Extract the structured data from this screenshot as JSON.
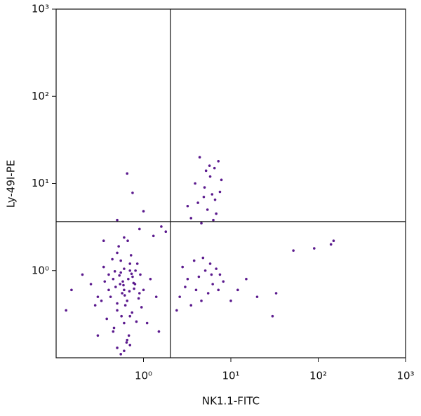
{
  "chart_data": {
    "type": "scatter",
    "x_label": "NK1.1-FITC",
    "y_label": "Ly-49I-PE",
    "log_x": true,
    "log_y": true,
    "color": "#5b1a8e",
    "xlim": [
      0.1,
      1000
    ],
    "ylim": [
      0.1,
      1000
    ],
    "xticks": [
      {
        "value": 1,
        "label": "10⁰"
      },
      {
        "value": 10,
        "label": "10¹"
      },
      {
        "value": 100,
        "label": "10²"
      },
      {
        "value": 1000,
        "label": "10³"
      }
    ],
    "yticks": [
      {
        "value": 1,
        "label": "10⁰"
      },
      {
        "value": 10,
        "label": "10¹"
      },
      {
        "value": 100,
        "label": "10²"
      },
      {
        "value": 1000,
        "label": "10³"
      }
    ],
    "quadrant_x": 2.03,
    "quadrant_y": 3.65,
    "x": [
      0.3,
      0.45,
      0.6,
      0.7,
      0.5,
      0.8,
      0.55,
      0.65,
      0.4,
      0.9,
      0.25,
      0.35,
      0.6,
      0.75,
      1.0,
      0.5,
      0.7,
      0.58,
      0.42,
      0.85,
      0.62,
      0.48,
      0.72,
      0.55,
      0.33,
      0.95,
      0.68,
      0.52,
      0.78,
      0.6,
      0.2,
      0.15,
      1.2,
      1.4,
      0.38,
      0.66,
      0.88,
      0.46,
      0.57,
      0.74,
      0.64,
      0.53,
      0.44,
      0.81,
      0.69,
      0.59,
      0.36,
      0.92,
      0.5,
      0.7,
      0.28,
      0.61,
      0.77,
      0.47,
      0.56,
      0.83,
      0.4,
      0.67,
      0.73,
      0.54,
      3.2,
      4.0,
      5.1,
      6.2,
      7.5,
      2.6,
      3.8,
      4.6,
      5.8,
      8.2,
      2.8,
      3.5,
      4.3,
      5.5,
      6.8,
      7.2,
      2.4,
      4.8,
      6.0,
      3.0,
      3.5,
      4.2,
      5.0,
      5.8,
      6.5,
      7.2,
      4.6,
      5.4,
      6.1,
      3.9,
      6.8,
      7.5,
      5.2,
      4.4,
      6.3,
      3.2,
      7.8,
      5.7,
      4.9,
      6.6,
      0.65,
      0.75,
      0.9,
      0.5,
      1.3,
      1.8,
      0.35,
      0.6,
      1.0,
      1.6,
      52,
      90,
      140,
      150,
      30,
      20,
      33,
      15,
      12,
      10,
      0.5,
      0.6,
      0.7,
      0.55,
      0.65,
      0.45,
      1.1,
      1.5,
      0.3,
      0.13
    ],
    "values": [
      0.5,
      0.8,
      0.6,
      1.0,
      0.35,
      0.7,
      1.3,
      0.45,
      0.9,
      0.55,
      0.7,
      1.1,
      0.25,
      0.85,
      0.6,
      1.6,
      0.3,
      0.75,
      0.5,
      1.2,
      0.4,
      0.65,
      1.5,
      0.95,
      0.45,
      0.38,
      0.18,
      1.9,
      0.62,
      1.05,
      0.9,
      0.6,
      0.8,
      0.5,
      0.28,
      2.2,
      0.48,
      0.22,
      0.55,
      0.33,
      0.15,
      0.88,
      1.35,
      1.0,
      0.58,
      0.68,
      0.75,
      0.9,
      0.42,
      1.2,
      0.4,
      0.52,
      0.72,
      0.98,
      0.3,
      0.26,
      0.6,
      0.8,
      0.92,
      0.7,
      0.8,
      0.6,
      1.0,
      0.7,
      0.9,
      0.5,
      1.3,
      0.45,
      1.2,
      0.75,
      1.1,
      0.4,
      0.85,
      0.55,
      1.05,
      0.6,
      0.35,
      1.4,
      0.9,
      0.65,
      4,
      6,
      9,
      12,
      15,
      18,
      3.5,
      5,
      7.5,
      10,
      4.5,
      8,
      14,
      20,
      3.8,
      5.5,
      11,
      16,
      7,
      6.5,
      13,
      7.8,
      3,
      3.8,
      2.5,
      2.8,
      2.2,
      2.4,
      4.8,
      3.2,
      1.7,
      1.8,
      2,
      2.2,
      0.3,
      0.5,
      0.55,
      0.8,
      0.6,
      0.45,
      0.13,
      0.12,
      0.14,
      0.11,
      0.16,
      0.2,
      0.25,
      0.2,
      0.18,
      0.35
    ]
  }
}
